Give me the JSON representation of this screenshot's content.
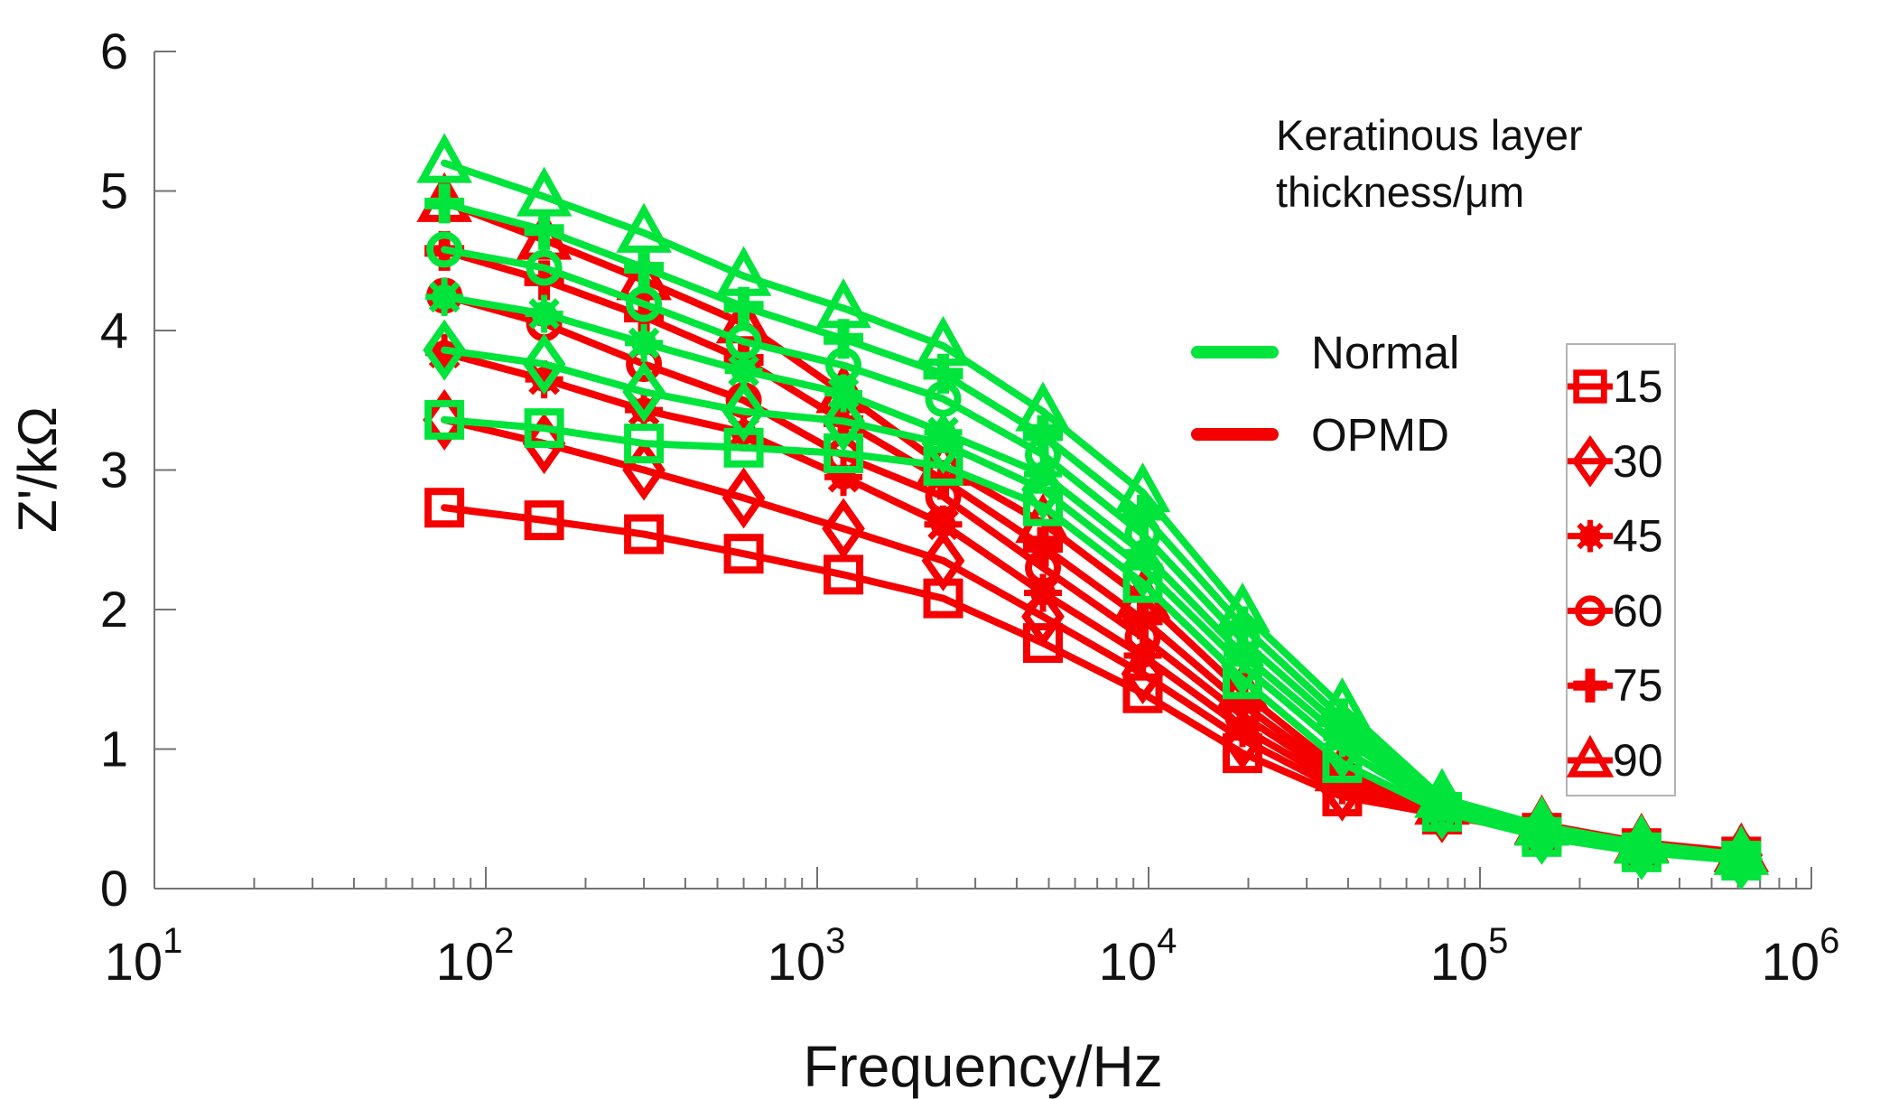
{
  "axes": {
    "x_label": "Frequency/Hz",
    "y_label": "Z'/kΩ",
    "y_tick_labels": [
      "0",
      "1",
      "2",
      "3",
      "4",
      "5",
      "6"
    ],
    "x_tick_labels": [
      {
        "base": "10",
        "exp": "1"
      },
      {
        "base": "10",
        "exp": "2"
      },
      {
        "base": "10",
        "exp": "3"
      },
      {
        "base": "10",
        "exp": "4"
      },
      {
        "base": "10",
        "exp": "5"
      },
      {
        "base": "10",
        "exp": "6"
      }
    ]
  },
  "legend": {
    "title_line1": "Keratinous layer",
    "title_line2": "thickness/μm",
    "normal_label": "Normal",
    "opmd_label": "OPMD",
    "marker_items": [
      {
        "marker": "square",
        "label": "15"
      },
      {
        "marker": "diamond",
        "label": "30"
      },
      {
        "marker": "star",
        "label": "45"
      },
      {
        "marker": "circle",
        "label": "60"
      },
      {
        "marker": "plus",
        "label": "75"
      },
      {
        "marker": "triangle",
        "label": "90"
      }
    ]
  },
  "chart_data": {
    "type": "line",
    "title": "",
    "xlabel": "Frequency/Hz",
    "ylabel": "Z'/kΩ",
    "x_scale": "log",
    "xlim": [
      10,
      1000000
    ],
    "ylim": [
      0,
      6
    ],
    "grid": false,
    "legend_position": "upper right",
    "colors": {
      "normal": "#00E43C",
      "opmd": "#F50000"
    },
    "x": [
      75,
      150,
      300,
      600,
      1200,
      2400,
      4800,
      9600,
      19200,
      38400,
      76800,
      153600,
      307200,
      614400
    ],
    "series": [
      {
        "group": "OPMD",
        "thickness": 90,
        "marker": "triangle",
        "color": "opmd",
        "values": [
          4.92,
          4.65,
          4.36,
          4.05,
          3.55,
          3.03,
          2.62,
          2.08,
          1.41,
          0.84,
          0.6,
          0.46,
          0.33,
          0.26
        ]
      },
      {
        "group": "OPMD",
        "thickness": 75,
        "marker": "plus",
        "color": "opmd",
        "values": [
          4.57,
          4.36,
          4.1,
          3.79,
          3.35,
          2.93,
          2.45,
          1.93,
          1.32,
          0.8,
          0.59,
          0.45,
          0.32,
          0.255
        ]
      },
      {
        "group": "OPMD",
        "thickness": 60,
        "marker": "circle",
        "color": "opmd",
        "values": [
          4.25,
          4.05,
          3.76,
          3.5,
          3.1,
          2.81,
          2.3,
          1.8,
          1.24,
          0.77,
          0.57,
          0.44,
          0.315,
          0.25
        ]
      },
      {
        "group": "OPMD",
        "thickness": 45,
        "marker": "star",
        "color": "opmd",
        "values": [
          3.84,
          3.65,
          3.43,
          3.27,
          2.95,
          2.61,
          2.12,
          1.67,
          1.15,
          0.74,
          0.555,
          0.43,
          0.31,
          0.245
        ]
      },
      {
        "group": "OPMD",
        "thickness": 30,
        "marker": "diamond",
        "color": "opmd",
        "values": [
          3.36,
          3.19,
          3.0,
          2.8,
          2.58,
          2.35,
          1.95,
          1.54,
          1.07,
          0.7,
          0.545,
          0.42,
          0.3,
          0.24
        ]
      },
      {
        "group": "OPMD",
        "thickness": 15,
        "marker": "square",
        "color": "opmd",
        "values": [
          2.73,
          2.64,
          2.54,
          2.4,
          2.25,
          2.08,
          1.76,
          1.4,
          0.97,
          0.66,
          0.53,
          0.4,
          0.29,
          0.23
        ]
      },
      {
        "group": "Normal",
        "thickness": 90,
        "marker": "triangle",
        "color": "normal",
        "values": [
          5.2,
          4.96,
          4.7,
          4.39,
          4.16,
          3.89,
          3.42,
          2.84,
          1.98,
          1.3,
          0.65,
          0.45,
          0.32,
          0.24
        ]
      },
      {
        "group": "Normal",
        "thickness": 75,
        "marker": "plus",
        "color": "normal",
        "values": [
          4.91,
          4.72,
          4.45,
          4.17,
          3.94,
          3.69,
          3.25,
          2.68,
          1.88,
          1.22,
          0.63,
          0.44,
          0.31,
          0.235
        ]
      },
      {
        "group": "Normal",
        "thickness": 60,
        "marker": "circle",
        "color": "normal",
        "values": [
          4.58,
          4.45,
          4.19,
          3.92,
          3.75,
          3.51,
          3.11,
          2.54,
          1.78,
          1.15,
          0.61,
          0.42,
          0.3,
          0.23
        ]
      },
      {
        "group": "Normal",
        "thickness": 45,
        "marker": "star",
        "color": "normal",
        "values": [
          4.24,
          4.12,
          3.91,
          3.71,
          3.55,
          3.27,
          2.97,
          2.41,
          1.68,
          1.08,
          0.59,
          0.41,
          0.29,
          0.22
        ]
      },
      {
        "group": "Normal",
        "thickness": 30,
        "marker": "diamond",
        "color": "normal",
        "values": [
          3.86,
          3.76,
          3.56,
          3.42,
          3.35,
          3.19,
          2.86,
          2.3,
          1.6,
          1.0,
          0.57,
          0.39,
          0.28,
          0.21
        ]
      },
      {
        "group": "Normal",
        "thickness": 15,
        "marker": "square",
        "color": "normal",
        "values": [
          3.36,
          3.3,
          3.19,
          3.16,
          3.12,
          3.03,
          2.74,
          2.19,
          1.5,
          0.9,
          0.55,
          0.37,
          0.26,
          0.2
        ]
      }
    ]
  }
}
